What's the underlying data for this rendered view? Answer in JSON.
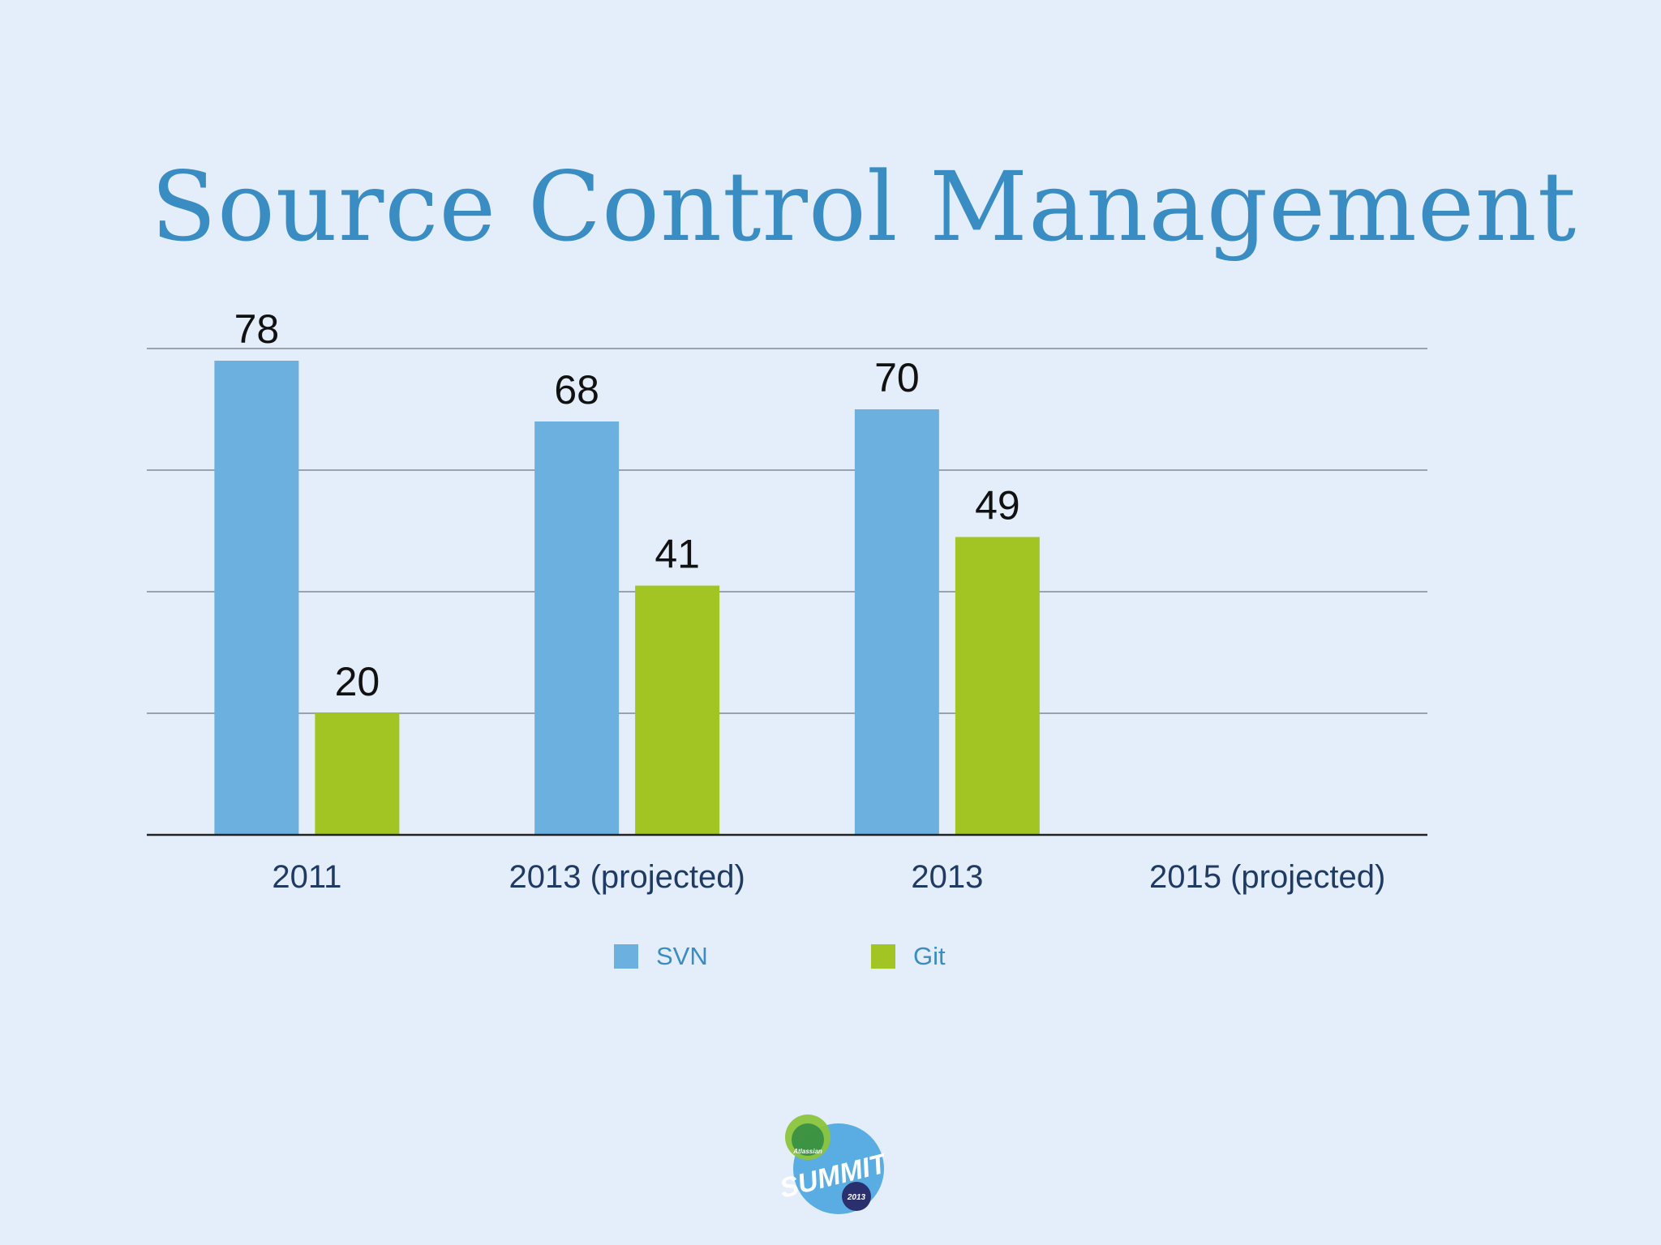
{
  "slide": {
    "title": "Source Control Management"
  },
  "colors": {
    "background": "#e4eefa",
    "title": "#3a8dc3",
    "svn": "#6cb0df",
    "git": "#a2c524",
    "axis_label": "#1f3b63",
    "value_label": "#111111",
    "gridline": "#9aa3ad"
  },
  "chart_data": {
    "type": "bar",
    "title": "",
    "categories": [
      "2011",
      "2013 (projected)",
      "2013",
      "2015 (projected)"
    ],
    "series": [
      {
        "name": "SVN",
        "values": [
          78,
          68,
          70,
          null
        ]
      },
      {
        "name": "Git",
        "values": [
          20,
          41,
          49,
          null
        ]
      }
    ],
    "data_labels": true,
    "ylim": [
      0,
      80
    ],
    "grid": true,
    "legend": "bottom-center"
  },
  "legend": {
    "svn_label": "SVN",
    "git_label": "Git"
  },
  "logo": {
    "icon": "atlassian-summit-logo",
    "brand": "Atlassian",
    "word": "SUMMIT",
    "year": "2013"
  }
}
